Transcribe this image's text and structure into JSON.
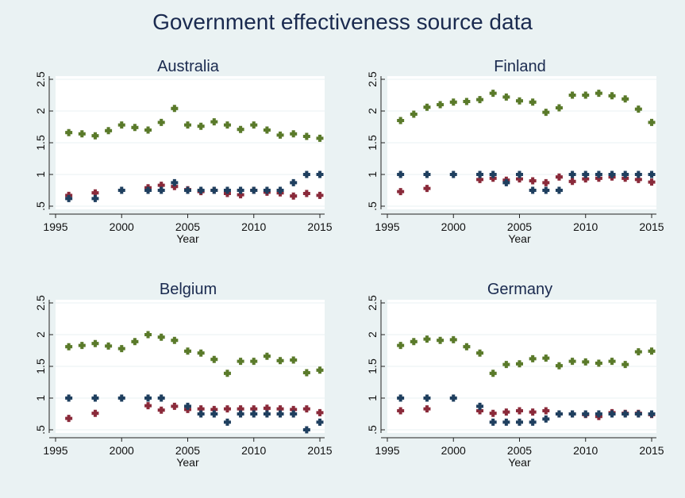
{
  "title": "Government effectiveness source data",
  "colors": {
    "background": "#eaf2f3",
    "plot_background": "#ffffff",
    "series_green": "#5a7a2a",
    "series_blue": "#1f3f5f",
    "series_red": "#8a2a3a"
  },
  "chart_data": [
    {
      "type": "scatter",
      "title": "Australia",
      "xlabel": "Year",
      "ylabel": "",
      "xlim": [
        1995,
        2015
      ],
      "ylim": [
        0.5,
        2.5
      ],
      "xticks": [
        "1995",
        "2000",
        "2005",
        "2010",
        "2015"
      ],
      "yticks": [
        ".5",
        "1",
        "1.5",
        "2",
        "2.5"
      ],
      "grid": true,
      "series": [
        {
          "color": "#5a7a2a",
          "x": [
            1996,
            1997,
            1998,
            1999,
            2000,
            2001,
            2002,
            2003,
            2004,
            2005,
            2006,
            2007,
            2008,
            2009,
            2010,
            2011,
            2012,
            2013,
            2014,
            2015
          ],
          "y": [
            1.66,
            1.64,
            1.61,
            1.69,
            1.78,
            1.74,
            1.7,
            1.82,
            2.04,
            1.78,
            1.76,
            1.83,
            1.78,
            1.71,
            1.78,
            1.7,
            1.62,
            1.64,
            1.6,
            1.57
          ]
        },
        {
          "color": "#1f3f5f",
          "x": [
            1996,
            1998,
            2000,
            2002,
            2003,
            2004,
            2005,
            2006,
            2007,
            2008,
            2009,
            2010,
            2011,
            2012,
            2013,
            2014,
            2015
          ],
          "y": [
            0.62,
            0.62,
            0.75,
            0.75,
            0.75,
            0.87,
            0.75,
            0.75,
            0.75,
            0.75,
            0.75,
            0.75,
            0.75,
            0.75,
            0.87,
            1.0,
            1.0
          ]
        },
        {
          "color": "#8a2a3a",
          "x": [
            1996,
            1998,
            2002,
            2003,
            2004,
            2005,
            2006,
            2007,
            2008,
            2009,
            2010,
            2011,
            2012,
            2013,
            2014,
            2015
          ],
          "y": [
            0.67,
            0.71,
            0.79,
            0.83,
            0.81,
            0.76,
            0.73,
            0.75,
            0.7,
            0.68,
            0.75,
            0.72,
            0.71,
            0.66,
            0.7,
            0.67
          ]
        }
      ]
    },
    {
      "type": "scatter",
      "title": "Finland",
      "xlabel": "Year",
      "ylabel": "",
      "xlim": [
        1995,
        2015
      ],
      "ylim": [
        0.5,
        2.5
      ],
      "xticks": [
        "1995",
        "2000",
        "2005",
        "2010",
        "2015"
      ],
      "yticks": [
        ".5",
        "1",
        "1.5",
        "2",
        "2.5"
      ],
      "grid": true,
      "series": [
        {
          "color": "#5a7a2a",
          "x": [
            1996,
            1997,
            1998,
            1999,
            2000,
            2001,
            2002,
            2003,
            2004,
            2005,
            2006,
            2007,
            2008,
            2009,
            2010,
            2011,
            2012,
            2013,
            2014,
            2015
          ],
          "y": [
            1.85,
            1.95,
            2.06,
            2.1,
            2.14,
            2.15,
            2.18,
            2.28,
            2.22,
            2.16,
            2.14,
            1.98,
            2.05,
            2.25,
            2.25,
            2.28,
            2.24,
            2.19,
            2.03,
            1.82
          ]
        },
        {
          "color": "#1f3f5f",
          "x": [
            1996,
            1998,
            2000,
            2002,
            2003,
            2004,
            2005,
            2006,
            2007,
            2008,
            2009,
            2010,
            2011,
            2012,
            2013,
            2014,
            2015
          ],
          "y": [
            1.0,
            1.0,
            1.0,
            1.0,
            1.0,
            0.87,
            1.0,
            0.75,
            0.75,
            0.75,
            1.0,
            1.0,
            1.0,
            1.0,
            1.0,
            1.0,
            1.0
          ]
        },
        {
          "color": "#8a2a3a",
          "x": [
            1996,
            1998,
            2002,
            2003,
            2004,
            2005,
            2006,
            2007,
            2008,
            2009,
            2010,
            2011,
            2012,
            2013,
            2014,
            2015
          ],
          "y": [
            0.73,
            0.78,
            0.92,
            0.94,
            0.91,
            0.93,
            0.9,
            0.87,
            0.96,
            0.89,
            0.93,
            0.94,
            0.96,
            0.94,
            0.92,
            0.88
          ]
        }
      ]
    },
    {
      "type": "scatter",
      "title": "Belgium",
      "xlabel": "Year",
      "ylabel": "",
      "xlim": [
        1995,
        2015
      ],
      "ylim": [
        0.5,
        2.5
      ],
      "xticks": [
        "1995",
        "2000",
        "2005",
        "2010",
        "2015"
      ],
      "yticks": [
        ".5",
        "1",
        "1.5",
        "2",
        "2.5"
      ],
      "grid": true,
      "series": [
        {
          "color": "#5a7a2a",
          "x": [
            1996,
            1997,
            1998,
            1999,
            2000,
            2001,
            2002,
            2003,
            2004,
            2005,
            2006,
            2007,
            2008,
            2009,
            2010,
            2011,
            2012,
            2013,
            2014,
            2015
          ],
          "y": [
            1.81,
            1.83,
            1.86,
            1.82,
            1.78,
            1.89,
            2.0,
            1.96,
            1.91,
            1.74,
            1.71,
            1.61,
            1.39,
            1.58,
            1.58,
            1.66,
            1.59,
            1.6,
            1.4,
            1.44
          ]
        },
        {
          "color": "#1f3f5f",
          "x": [
            1996,
            1998,
            2000,
            2002,
            2003,
            2005,
            2006,
            2007,
            2008,
            2009,
            2010,
            2011,
            2012,
            2013,
            2014,
            2015
          ],
          "y": [
            1.0,
            1.0,
            1.0,
            1.0,
            1.0,
            0.87,
            0.75,
            0.75,
            0.62,
            0.75,
            0.75,
            0.75,
            0.75,
            0.75,
            0.5,
            0.62
          ]
        },
        {
          "color": "#8a2a3a",
          "x": [
            1996,
            1998,
            2002,
            2003,
            2004,
            2005,
            2006,
            2007,
            2008,
            2009,
            2010,
            2011,
            2012,
            2013,
            2014,
            2015
          ],
          "y": [
            0.68,
            0.76,
            0.88,
            0.81,
            0.87,
            0.82,
            0.83,
            0.82,
            0.83,
            0.83,
            0.83,
            0.84,
            0.83,
            0.82,
            0.83,
            0.77
          ]
        }
      ]
    },
    {
      "type": "scatter",
      "title": "Germany",
      "xlabel": "Year",
      "ylabel": "",
      "xlim": [
        1995,
        2015
      ],
      "ylim": [
        0.5,
        2.5
      ],
      "xticks": [
        "1995",
        "2000",
        "2005",
        "2010",
        "2015"
      ],
      "yticks": [
        ".5",
        "1",
        "1.5",
        "2",
        "2.5"
      ],
      "grid": true,
      "series": [
        {
          "color": "#5a7a2a",
          "x": [
            1996,
            1997,
            1998,
            1999,
            2000,
            2001,
            2002,
            2003,
            2004,
            2005,
            2006,
            2007,
            2008,
            2009,
            2010,
            2011,
            2012,
            2013,
            2014,
            2015
          ],
          "y": [
            1.83,
            1.89,
            1.93,
            1.91,
            1.92,
            1.81,
            1.71,
            1.39,
            1.53,
            1.54,
            1.62,
            1.63,
            1.51,
            1.58,
            1.57,
            1.55,
            1.58,
            1.53,
            1.73,
            1.74
          ]
        },
        {
          "color": "#1f3f5f",
          "x": [
            1996,
            1998,
            2000,
            2002,
            2003,
            2004,
            2005,
            2006,
            2007,
            2008,
            2009,
            2010,
            2011,
            2012,
            2013,
            2014,
            2015
          ],
          "y": [
            1.0,
            1.0,
            1.0,
            0.87,
            0.62,
            0.62,
            0.62,
            0.62,
            0.67,
            0.75,
            0.75,
            0.75,
            0.75,
            0.75,
            0.75,
            0.75,
            0.75
          ]
        },
        {
          "color": "#8a2a3a",
          "x": [
            1996,
            1998,
            2002,
            2003,
            2004,
            2005,
            2006,
            2007,
            2008,
            2009,
            2010,
            2011,
            2012,
            2013,
            2014,
            2015
          ],
          "y": [
            0.8,
            0.83,
            0.8,
            0.76,
            0.78,
            0.8,
            0.78,
            0.8,
            0.75,
            0.75,
            0.74,
            0.71,
            0.77,
            0.76,
            0.76,
            0.74
          ]
        }
      ]
    }
  ]
}
